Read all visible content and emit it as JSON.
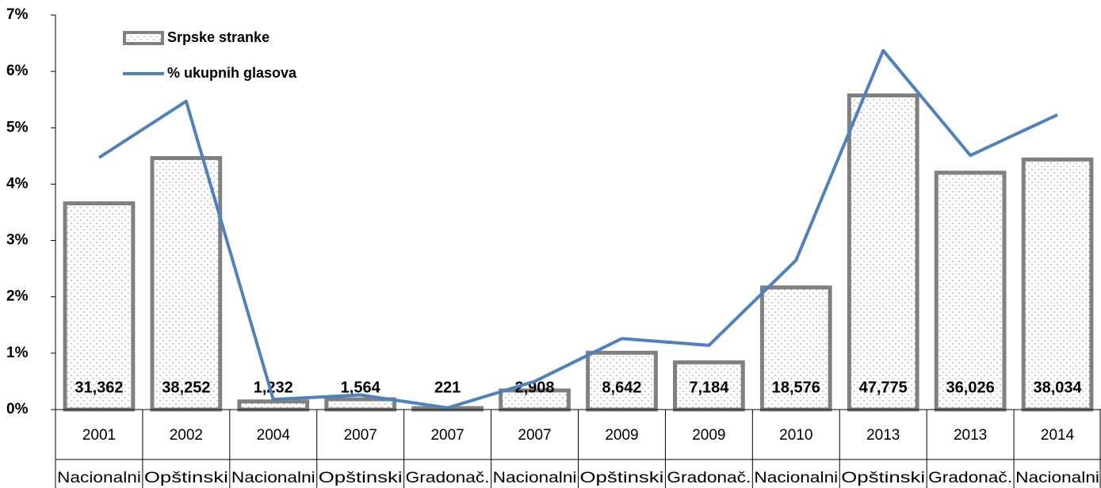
{
  "chart_data": {
    "type": "bar",
    "categories": [
      "2001",
      "2002",
      "2004",
      "2007",
      "2007",
      "2007",
      "2009",
      "2009",
      "2010",
      "2013",
      "2013",
      "2014"
    ],
    "category_types": [
      "Nacionalni",
      "Opštinski",
      "Nacionalni",
      "Opštinski",
      "Gradonač.",
      "Nacionalni",
      "Opštinski",
      "Gradonač.",
      "Nacionalni",
      "Opštinski",
      "Gradonač.",
      "Nacionalni"
    ],
    "series": [
      {
        "name": "Srpske stranke",
        "type": "bar",
        "axis": "y2",
        "color": "#808080",
        "values": [
          31362,
          38252,
          1232,
          1564,
          221,
          2908,
          8642,
          7184,
          18576,
          47775,
          36026,
          38034
        ],
        "value_labels": [
          "31,362",
          "38,252",
          "1,232",
          "1,564",
          "221",
          "2,908",
          "8,642",
          "7,184",
          "18,576",
          "47,775",
          "36,026",
          "38,034"
        ]
      },
      {
        "name": "% ukupnih glasova",
        "type": "line",
        "color": "#4f81bd",
        "values": [
          4.47,
          5.47,
          0.18,
          0.26,
          0.03,
          0.5,
          1.26,
          1.14,
          2.65,
          6.37,
          4.51,
          5.23
        ]
      }
    ],
    "ylim": [
      0,
      7
    ],
    "yticks": [
      {
        "value": 0,
        "label": "0%"
      },
      {
        "value": 1,
        "label": "1%"
      },
      {
        "value": 2,
        "label": "2%"
      },
      {
        "value": 3,
        "label": "3%"
      },
      {
        "value": 4,
        "label": "4%"
      },
      {
        "value": 5,
        "label": "5%"
      },
      {
        "value": 6,
        "label": "6%"
      },
      {
        "value": 7,
        "label": "7%"
      }
    ],
    "y2lim": [
      0,
      60000
    ],
    "legend": "top-left"
  }
}
